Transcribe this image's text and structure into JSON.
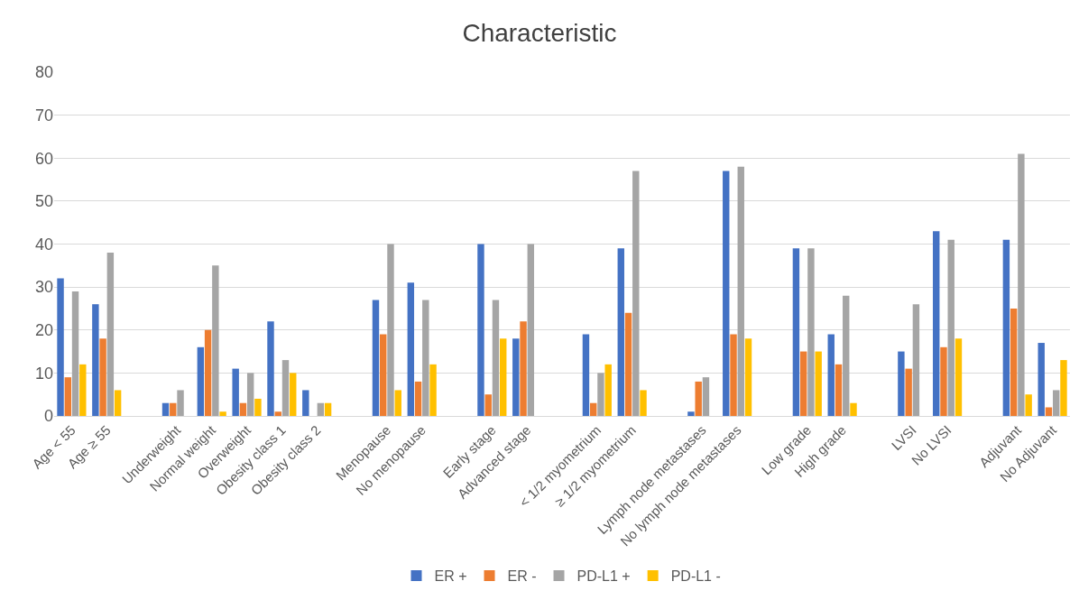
{
  "chart_data": {
    "type": "bar",
    "title": "Characteristic",
    "categories": [
      "Age < 55",
      "Age ≥ 55",
      null,
      "Underweight",
      "Normal weight",
      "Overweight",
      "Obesity class 1",
      "Obesity class 2",
      null,
      "Menopause",
      "No menopause",
      null,
      "Early stage",
      "Advanced stage",
      null,
      "< 1/2 myometrium",
      "≥ 1/2 myometrium",
      null,
      "Lymph node metastases",
      "No lymph node metastases",
      null,
      "Low grade",
      "High grade",
      null,
      "LVSI",
      "No LVSI",
      null,
      "Adjuvant",
      "No Adjuvant"
    ],
    "series": [
      {
        "name": "ER +",
        "color": "#4472c4",
        "values": [
          32,
          26,
          null,
          3,
          16,
          11,
          22,
          6,
          null,
          27,
          31,
          null,
          40,
          18,
          null,
          19,
          39,
          null,
          1,
          57,
          null,
          39,
          19,
          null,
          15,
          43,
          null,
          41,
          17
        ]
      },
      {
        "name": "ER -",
        "color": "#ed7d31",
        "values": [
          9,
          18,
          null,
          3,
          20,
          3,
          1,
          0,
          null,
          19,
          8,
          null,
          5,
          22,
          null,
          3,
          24,
          null,
          8,
          19,
          null,
          15,
          12,
          null,
          11,
          16,
          null,
          25,
          2
        ]
      },
      {
        "name": "PD-L1 +",
        "color": "#a5a5a5",
        "values": [
          29,
          38,
          null,
          6,
          35,
          10,
          13,
          3,
          null,
          40,
          27,
          null,
          27,
          40,
          null,
          10,
          57,
          null,
          9,
          58,
          null,
          39,
          28,
          null,
          26,
          41,
          null,
          61,
          6
        ]
      },
      {
        "name": "PD-L1 -",
        "color": "#ffc000",
        "values": [
          12,
          6,
          null,
          0,
          1,
          4,
          10,
          3,
          null,
          6,
          12,
          null,
          18,
          0,
          null,
          12,
          6,
          null,
          0,
          18,
          null,
          15,
          3,
          null,
          0,
          18,
          null,
          5,
          13
        ]
      }
    ],
    "ylim": [
      0,
      80
    ],
    "yticks": [
      0,
      10,
      20,
      30,
      40,
      50,
      60,
      70,
      80
    ],
    "grid": "y",
    "legend": "bottom"
  }
}
